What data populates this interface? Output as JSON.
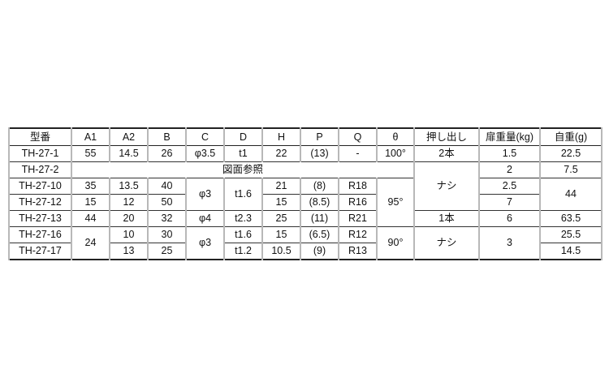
{
  "table": {
    "headers": [
      "型番",
      "A1",
      "A2",
      "B",
      "C",
      "D",
      "H",
      "P",
      "Q",
      "θ",
      "押し出し",
      "扉重量(kg)",
      "自重(g)"
    ],
    "rows": [
      [
        {
          "v": "TH-27-1"
        },
        {
          "v": "55"
        },
        {
          "v": "14.5"
        },
        {
          "v": "26"
        },
        {
          "v": "φ3.5"
        },
        {
          "v": "t1"
        },
        {
          "v": "22"
        },
        {
          "v": "(13)"
        },
        {
          "v": "-"
        },
        {
          "v": "100°"
        },
        {
          "v": "2本"
        },
        {
          "v": "1.5"
        },
        {
          "v": "22.5"
        }
      ],
      [
        {
          "v": "TH-27-2"
        },
        {
          "v": "図面参照",
          "cs": 9
        },
        {
          "v": "ナシ",
          "rs": 3
        },
        {
          "v": "2"
        },
        {
          "v": "7.5"
        }
      ],
      [
        {
          "v": "TH-27-10"
        },
        {
          "v": "35"
        },
        {
          "v": "13.5"
        },
        {
          "v": "40"
        },
        {
          "v": "φ3",
          "rs": 2
        },
        {
          "v": "t1.6",
          "rs": 2
        },
        {
          "v": "21"
        },
        {
          "v": "(8)"
        },
        {
          "v": "R18"
        },
        {
          "v": "95°",
          "rs": 3
        },
        {
          "v": "2.5"
        },
        {
          "v": "44",
          "rs": 2
        }
      ],
      [
        {
          "v": "TH-27-12"
        },
        {
          "v": "15"
        },
        {
          "v": "12"
        },
        {
          "v": "50"
        },
        {
          "v": "15"
        },
        {
          "v": "(8.5)"
        },
        {
          "v": "R16"
        },
        {
          "v": "7"
        }
      ],
      [
        {
          "v": "TH-27-13"
        },
        {
          "v": "44"
        },
        {
          "v": "20"
        },
        {
          "v": "32"
        },
        {
          "v": "φ4"
        },
        {
          "v": "t2.3"
        },
        {
          "v": "25"
        },
        {
          "v": "(11)"
        },
        {
          "v": "R21"
        },
        {
          "v": "1本"
        },
        {
          "v": "6"
        },
        {
          "v": "63.5"
        }
      ],
      [
        {
          "v": "TH-27-16"
        },
        {
          "v": "24",
          "rs": 2
        },
        {
          "v": "10"
        },
        {
          "v": "30"
        },
        {
          "v": "φ3",
          "rs": 2
        },
        {
          "v": "t1.6"
        },
        {
          "v": "15"
        },
        {
          "v": "(6.5)"
        },
        {
          "v": "R12"
        },
        {
          "v": "90°",
          "rs": 2
        },
        {
          "v": "ナシ",
          "rs": 2
        },
        {
          "v": "3",
          "rs": 2
        },
        {
          "v": "25.5"
        }
      ],
      [
        {
          "v": "TH-27-17"
        },
        {
          "v": "13"
        },
        {
          "v": "25"
        },
        {
          "v": "t1.2"
        },
        {
          "v": "10.5"
        },
        {
          "v": "(9)"
        },
        {
          "v": "R13"
        },
        {
          "v": "14.5"
        }
      ]
    ]
  }
}
